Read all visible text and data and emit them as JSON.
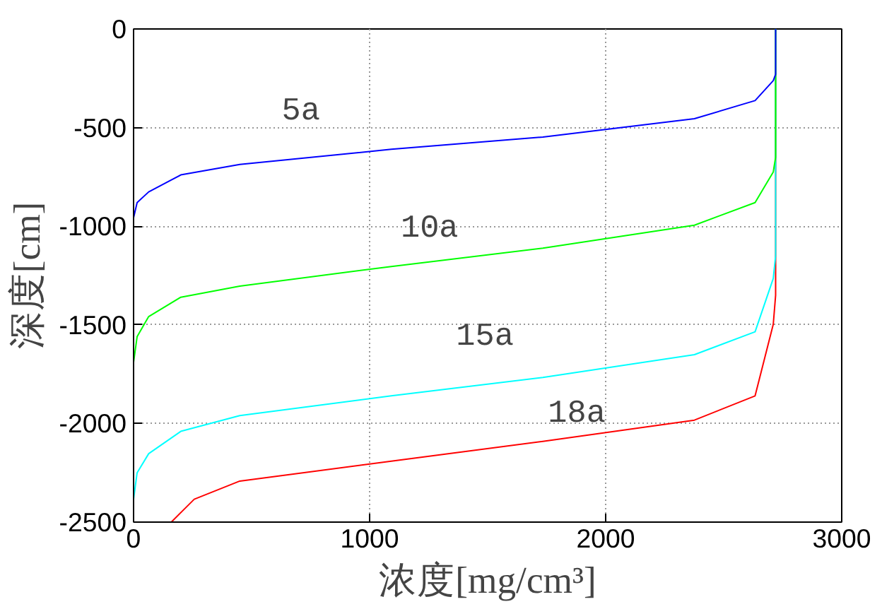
{
  "chart_data": {
    "type": "line",
    "xlabel": "浓度[mg/cm³]",
    "ylabel": "深度[cm]",
    "xlim": [
      0,
      3000
    ],
    "ylim": [
      -2500,
      0
    ],
    "xticks": [
      0,
      1000,
      2000,
      3000
    ],
    "yticks": [
      -2500,
      -2000,
      -1500,
      -1000,
      -500,
      0
    ],
    "grid": true,
    "marker": "none",
    "line_style": "solid",
    "series": [
      {
        "name": "5a",
        "color": "#0000ff",
        "x": [
          0,
          15,
          64,
          200,
          450,
          1092,
          1734,
          2376,
          2633,
          2710,
          2720,
          2720
        ],
        "values": [
          -957,
          -880,
          -826,
          -740,
          -687,
          -610,
          -548,
          -455,
          -363,
          -262,
          -230,
          0
        ]
      },
      {
        "name": "10a",
        "color": "#00ff00",
        "x": [
          0,
          15,
          64,
          200,
          450,
          1092,
          1734,
          2376,
          2633,
          2710,
          2720,
          2720
        ],
        "values": [
          -1690,
          -1560,
          -1458,
          -1360,
          -1304,
          -1204,
          -1111,
          -995,
          -880,
          -725,
          -650,
          0
        ]
      },
      {
        "name": "15a",
        "color": "#00ffff",
        "x": [
          0,
          15,
          64,
          200,
          450,
          1092,
          1734,
          2376,
          2633,
          2710,
          2720,
          2720
        ],
        "values": [
          -2384,
          -2250,
          -2153,
          -2040,
          -1960,
          -1860,
          -1767,
          -1651,
          -1535,
          -1265,
          -1150,
          0
        ]
      },
      {
        "name": "18a",
        "color": "#ff0000",
        "x": [
          160,
          257,
          450,
          1092,
          1734,
          2376,
          2633,
          2710,
          2720,
          2720
        ],
        "values": [
          -2500,
          -2384,
          -2292,
          -2191,
          -2091,
          -1983,
          -1860,
          -1497,
          -1350,
          0
        ]
      }
    ]
  }
}
